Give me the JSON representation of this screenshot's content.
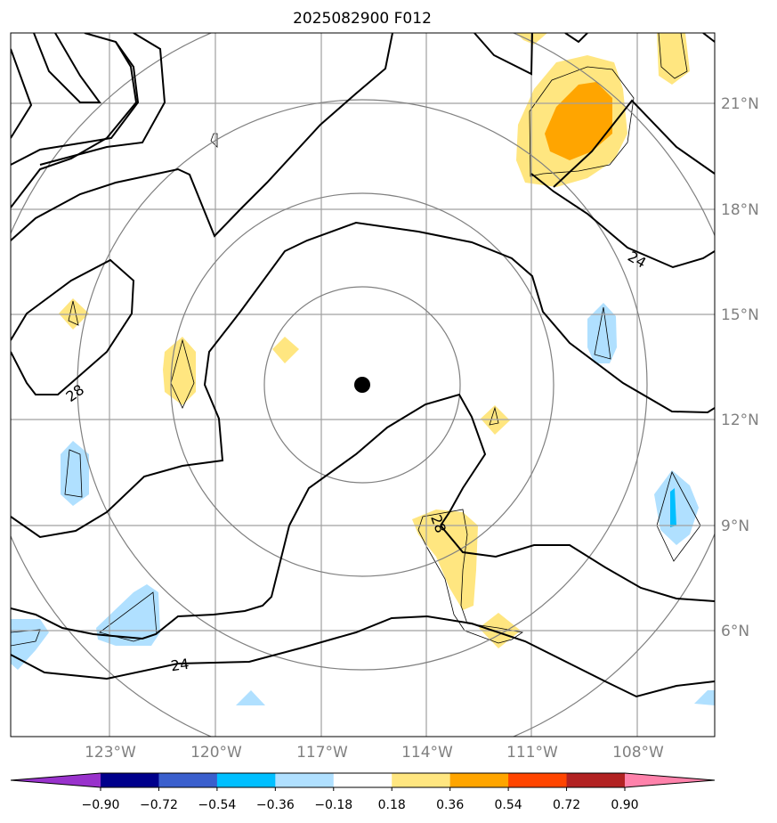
{
  "chart_data": {
    "type": "contour-map",
    "title": "2025082900 F012",
    "x_ticks": [
      "123°W",
      "120°W",
      "117°W",
      "114°W",
      "111°W",
      "108°W"
    ],
    "y_ticks": [
      "21°N",
      "18°N",
      "15°N",
      "12°N",
      "9°N",
      "6°N"
    ],
    "storm_center": {
      "lon": -115.8,
      "lat": 13.0
    },
    "range_rings": "concentric gray circles around storm center",
    "line_contour_levels": [
      24,
      28
    ],
    "line_contour_labels": [
      "24",
      "24",
      "28",
      "28"
    ],
    "colorbar": {
      "boundaries": [
        "−0.90",
        "−0.72",
        "−0.54",
        "−0.36",
        "−0.18",
        "0.18",
        "0.36",
        "0.54",
        "0.72",
        "0.90"
      ],
      "colors": [
        "#9932CC",
        "#00008B",
        "#3A5FCD",
        "#00BFFF",
        "#B0E0FF",
        "#FFFFFF",
        "#FFE680",
        "#FFA500",
        "#FF4500",
        "#B22222",
        "#FF82AB"
      ],
      "extend": "both"
    },
    "shaded_areas": [
      {
        "value_range": "0.18–0.36",
        "near": "20°N 111°W"
      },
      {
        "value_range": "0.36–0.54",
        "near": "20.5°N 110.5°W"
      },
      {
        "value_range": "0.18–0.36",
        "near": "9°N 113.5°W"
      },
      {
        "value_range": "0.18–0.36",
        "near": "13.5°N 121°W"
      },
      {
        "value_range": "−0.36–−0.18",
        "near": "15°N 109°W"
      },
      {
        "value_range": "−0.36–−0.18",
        "near": "9.5°N 107°W"
      },
      {
        "value_range": "−0.54–−0.36",
        "near": "9.5°N 107°W"
      },
      {
        "value_range": "−0.36–−0.18",
        "near": "10.5°N 124°W"
      },
      {
        "value_range": "−0.36–−0.18",
        "near": "6.5°N 122°W"
      }
    ],
    "colors": {
      "contour": "#000000",
      "grid": "#A0A0A0",
      "rings": "#808080",
      "center_marker": "#000000"
    }
  }
}
